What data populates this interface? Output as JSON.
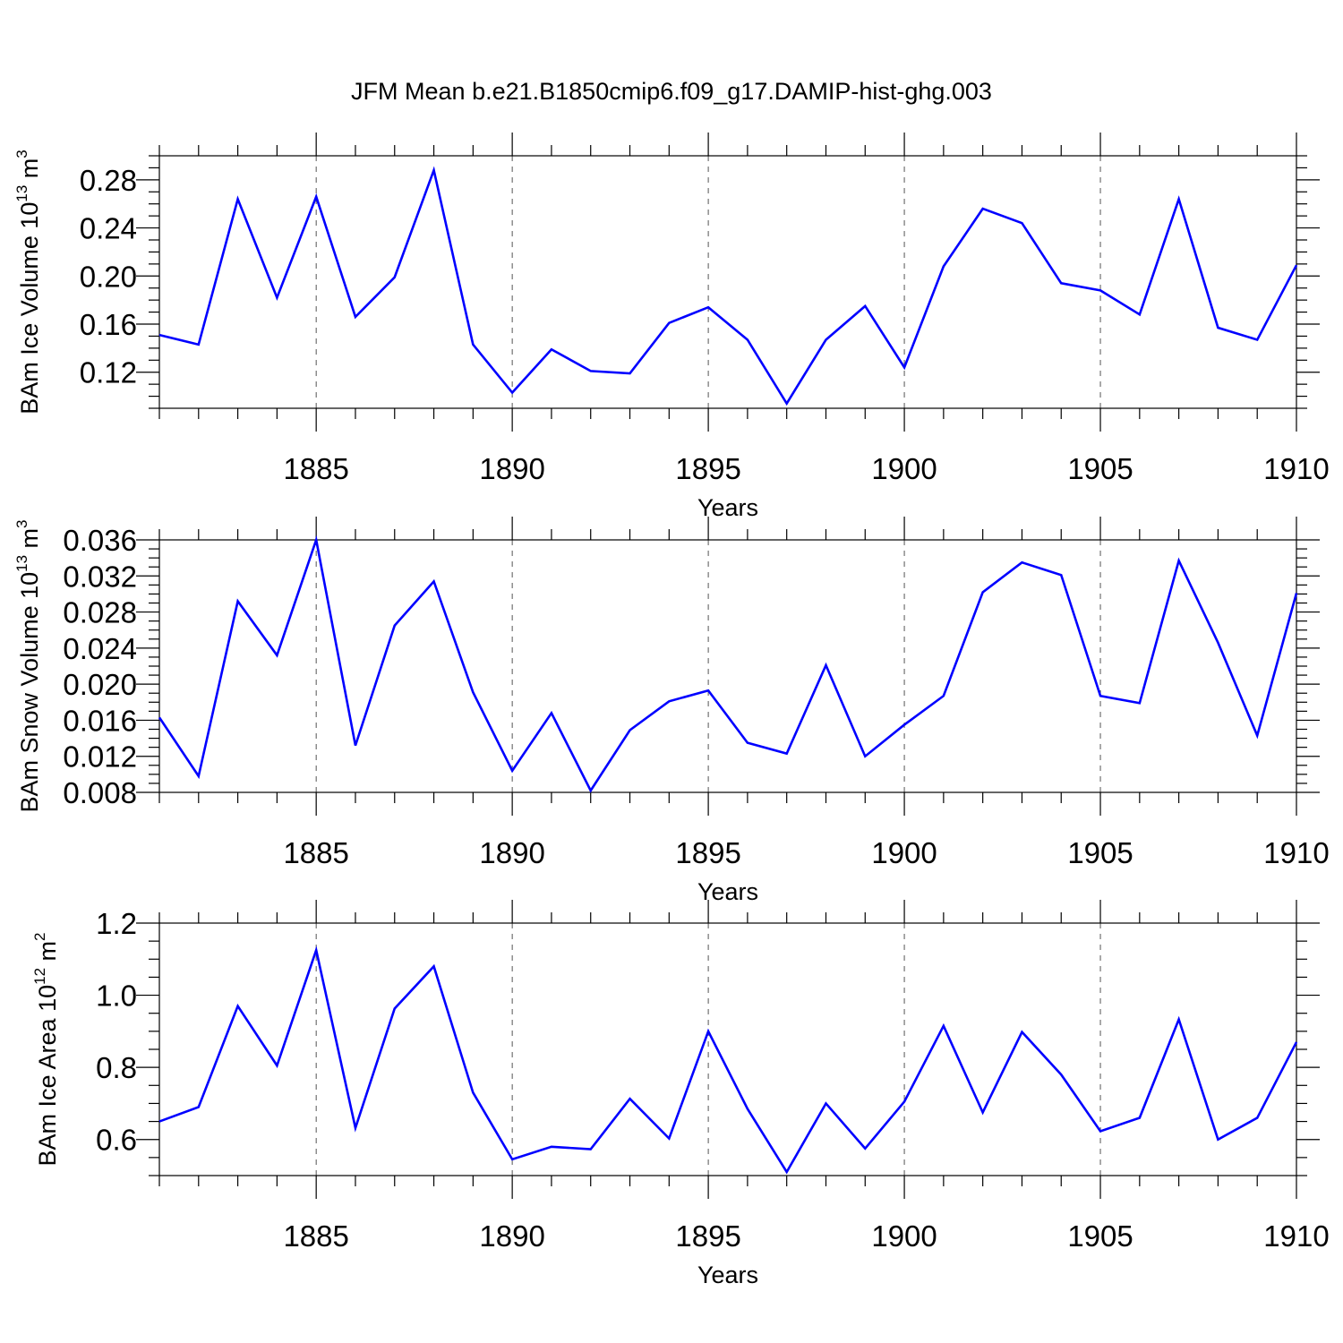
{
  "title": "JFM Mean b.e21.B1850cmip6.f09_g17.DAMIP-hist-ghg.003",
  "colors": {
    "line": "#0000ff",
    "grid": "#555555",
    "axes": "#000000"
  },
  "chart_data": [
    {
      "type": "line",
      "ylabel": "BAm Ice Volume 10",
      "ylabel_exp": "13",
      "ylabel_unit": " m",
      "ylabel_unit_exp": "3",
      "xlabel": "Years",
      "xlim": [
        1881,
        1910
      ],
      "ylim": [
        0.09,
        0.3
      ],
      "yticks": [
        0.12,
        0.16,
        0.2,
        0.24,
        0.28
      ],
      "ytick_labels": [
        "0.12",
        "0.16",
        "0.20",
        "0.24",
        "0.28"
      ],
      "yminor": 0.01,
      "xticks": [
        1885,
        1890,
        1895,
        1900,
        1905,
        1910
      ],
      "xtick_labels": [
        "1885",
        "1890",
        "1895",
        "1900",
        "1905",
        "1910"
      ],
      "grid": "vertical dashed at major x ticks",
      "x": [
        1881,
        1882,
        1883,
        1884,
        1885,
        1886,
        1887,
        1888,
        1889,
        1890,
        1891,
        1892,
        1893,
        1894,
        1895,
        1896,
        1897,
        1898,
        1899,
        1900,
        1901,
        1902,
        1903,
        1904,
        1905,
        1906,
        1907,
        1908,
        1909,
        1910
      ],
      "values": [
        0.151,
        0.143,
        0.264,
        0.182,
        0.266,
        0.166,
        0.199,
        0.288,
        0.143,
        0.103,
        0.139,
        0.121,
        0.119,
        0.161,
        0.174,
        0.147,
        0.094,
        0.147,
        0.175,
        0.124,
        0.208,
        0.256,
        0.244,
        0.194,
        0.188,
        0.168,
        0.264,
        0.157,
        0.147,
        0.209
      ]
    },
    {
      "type": "line",
      "ylabel": "BAm Snow Volume 10",
      "ylabel_exp": "13",
      "ylabel_unit": " m",
      "ylabel_unit_exp": "3",
      "xlabel": "Years",
      "xlim": [
        1881,
        1910
      ],
      "ylim": [
        0.008,
        0.036
      ],
      "yticks": [
        0.008,
        0.012,
        0.016,
        0.02,
        0.024,
        0.028,
        0.032,
        0.036
      ],
      "ytick_labels": [
        "0.008",
        "0.012",
        "0.016",
        "0.020",
        "0.024",
        "0.028",
        "0.032",
        "0.036"
      ],
      "yminor": 0.001,
      "xticks": [
        1885,
        1890,
        1895,
        1900,
        1905,
        1910
      ],
      "xtick_labels": [
        "1885",
        "1890",
        "1895",
        "1900",
        "1905",
        "1910"
      ],
      "grid": "vertical dashed at major x ticks",
      "x": [
        1881,
        1882,
        1883,
        1884,
        1885,
        1886,
        1887,
        1888,
        1889,
        1890,
        1891,
        1892,
        1893,
        1894,
        1895,
        1896,
        1897,
        1898,
        1899,
        1900,
        1901,
        1902,
        1903,
        1904,
        1905,
        1906,
        1907,
        1908,
        1909,
        1910
      ],
      "values": [
        0.0163,
        0.0098,
        0.0292,
        0.0232,
        0.036,
        0.0132,
        0.0265,
        0.0314,
        0.0191,
        0.0104,
        0.0168,
        0.0082,
        0.0149,
        0.0181,
        0.0193,
        0.0135,
        0.0123,
        0.0221,
        0.012,
        0.0155,
        0.0187,
        0.0302,
        0.0335,
        0.0321,
        0.0187,
        0.0179,
        0.0337,
        0.0246,
        0.0143,
        0.0301
      ]
    },
    {
      "type": "line",
      "ylabel": "BAm Ice Area 10",
      "ylabel_exp": "12",
      "ylabel_unit": " m",
      "ylabel_unit_exp": "2",
      "xlabel": "Years",
      "xlim": [
        1881,
        1910
      ],
      "ylim": [
        0.5,
        1.2
      ],
      "yticks": [
        0.6,
        0.8,
        1.0,
        1.2
      ],
      "ytick_labels": [
        "0.6",
        "0.8",
        "1.0",
        "1.2"
      ],
      "yminor": 0.05,
      "xticks": [
        1885,
        1890,
        1895,
        1900,
        1905,
        1910
      ],
      "xtick_labels": [
        "1885",
        "1890",
        "1895",
        "1900",
        "1905",
        "1910"
      ],
      "grid": "vertical dashed at major x ticks",
      "x": [
        1881,
        1882,
        1883,
        1884,
        1885,
        1886,
        1887,
        1888,
        1889,
        1890,
        1891,
        1892,
        1893,
        1894,
        1895,
        1896,
        1897,
        1898,
        1899,
        1900,
        1901,
        1902,
        1903,
        1904,
        1905,
        1906,
        1907,
        1908,
        1909,
        1910
      ],
      "values": [
        0.65,
        0.69,
        0.97,
        0.805,
        1.125,
        0.632,
        0.963,
        1.08,
        0.73,
        0.545,
        0.58,
        0.573,
        0.713,
        0.603,
        0.9,
        0.685,
        0.51,
        0.7,
        0.575,
        0.705,
        0.915,
        0.675,
        0.898,
        0.78,
        0.623,
        0.66,
        0.933,
        0.6,
        0.66,
        0.87
      ]
    }
  ]
}
